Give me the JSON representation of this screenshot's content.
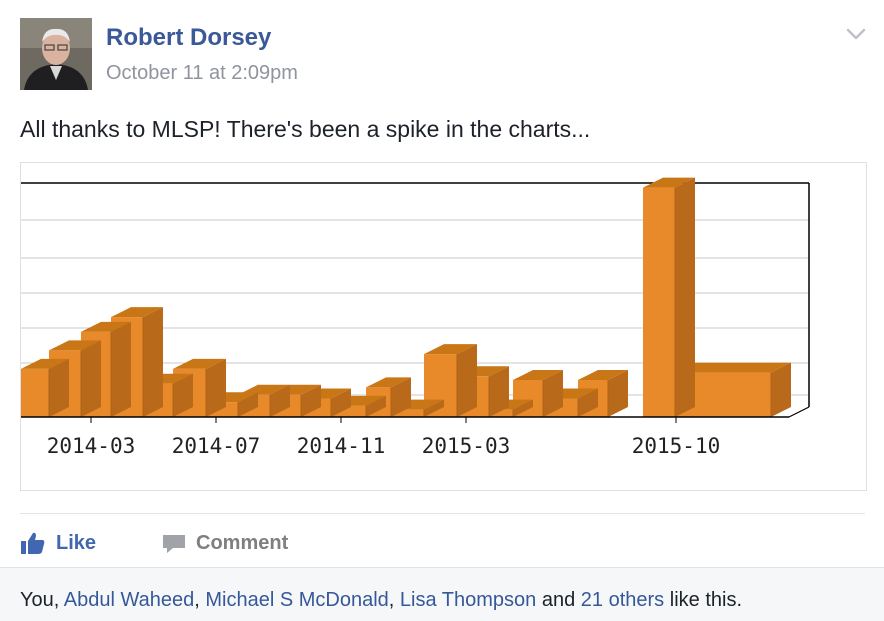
{
  "post": {
    "author": "Robert Dorsey",
    "timestamp": "October 11 at 2:09pm",
    "text": "All thanks to MLSP! There's been a spike in the charts..."
  },
  "actions": {
    "like_label": "Like",
    "comment_label": "Comment"
  },
  "likes": {
    "you": "You",
    "people": [
      "Abdul Waheed",
      "Michael S McDonald",
      "Lisa Thompson"
    ],
    "and_word": "and",
    "others": "21 others",
    "suffix": "like this."
  },
  "icons": {
    "menu": "chevron-down-icon",
    "like": "thumbs-up-icon",
    "comment": "speech-bubble-icon"
  },
  "colors": {
    "name_link": "#3b5998",
    "like_blue": "#4267b2",
    "bar_front": "#e8892a",
    "bar_top": "#c97716",
    "bar_side": "#b8691a"
  },
  "chart_data": {
    "type": "bar",
    "x_tick_labels": [
      "2014-03",
      "2014-07",
      "2014-11",
      "2015-03",
      "2015-10"
    ],
    "series": [
      {
        "values": [
          1.3,
          1.8,
          2.3,
          2.7,
          0.9,
          1.3,
          0.4,
          0.6,
          0.6,
          0.5,
          0.3,
          0.8,
          0.2,
          1.7,
          1.1,
          0.2,
          1.0,
          0.5,
          1.0,
          6.2,
          1.2
        ]
      }
    ],
    "grid": true
  }
}
